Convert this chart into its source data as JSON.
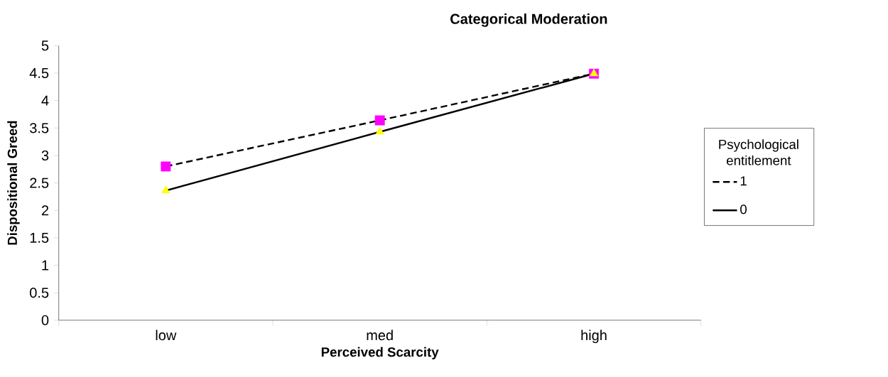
{
  "chart_data": {
    "type": "line",
    "title": "Categorical Moderation",
    "xlabel": "Perceived Scarcity",
    "ylabel": "Dispositional Greed",
    "legend_title": "Psychological entitlement",
    "legend": "right",
    "grid": false,
    "categories": [
      "low",
      "med",
      "high"
    ],
    "ylim": [
      0,
      5
    ],
    "yticks": [
      0,
      0.5,
      1,
      1.5,
      2,
      2.5,
      3,
      3.5,
      4,
      4.5,
      5
    ],
    "series": [
      {
        "name": "1",
        "color": "#000000",
        "colors": [
          "#ff00ff",
          "#ff00ff",
          "#ff00ff"
        ],
        "marker": "square",
        "line_style": "dashed",
        "values": [
          2.8,
          3.64,
          4.49
        ]
      },
      {
        "name": "0",
        "color": "#000000",
        "colors": [
          "#ffff00",
          "#ffff00",
          "#ffff00"
        ],
        "marker": "triangle",
        "line_style": "solid",
        "values": [
          2.36,
          3.43,
          4.49
        ]
      }
    ]
  }
}
